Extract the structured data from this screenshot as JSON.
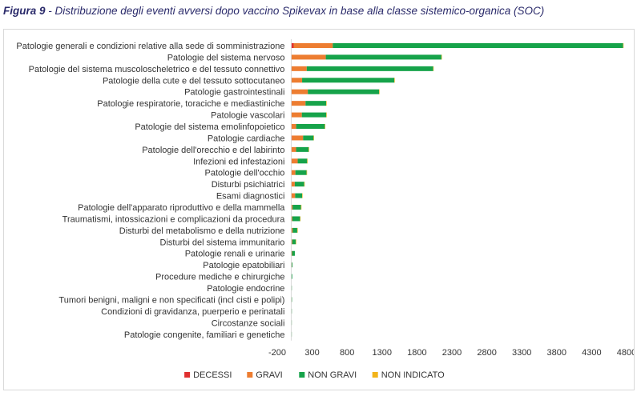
{
  "figure": {
    "label": "Figura 9",
    "separator": " - ",
    "title": "Distribuzione degli eventi avversi dopo vaccino Spikevax in base alla classe sistemico-organica (SOC)"
  },
  "chart_data": {
    "type": "bar",
    "orientation": "horizontal",
    "stacked": true,
    "categories": [
      "Patologie generali e condizioni relative alla sede di somministrazione",
      "Patologie del sistema nervoso",
      "Patologie del sistema muscoloscheletrico e del tessuto connettivo",
      "Patologie della cute e del tessuto sottocutaneo",
      "Patologie gastrointestinali",
      "Patologie respiratorie, toraciche e mediastiniche",
      "Patologie vascolari",
      "Patologie del sistema emolinfopoietico",
      "Patologie cardiache",
      "Patologie dell'orecchio e del labirinto",
      "Infezioni ed infestazioni",
      "Patologie dell'occhio",
      "Disturbi psichiatrici",
      "Esami diagnostici",
      "Patologie dell'apparato riproduttivo e della mammella",
      "Traumatismi, intossicazioni e complicazioni da procedura",
      "Disturbi del metabolismo e della nutrizione",
      "Disturbi del sistema immunitario",
      "Patologie renali e urinarie",
      "Patologie epatobiliari",
      "Procedure mediche e chirurgiche",
      "Patologie endocrine",
      "Tumori benigni, maligni e non specificati (incl cisti e polipi)",
      "Condizioni di gravidanza, puerperio e perinatali",
      "Circostanze sociali",
      "Patologie congenite, familiari e genetiche"
    ],
    "series": [
      {
        "name": "DECESSI",
        "color": "#e03030",
        "values": [
          35,
          5,
          2,
          1,
          3,
          5,
          2,
          1,
          10,
          0,
          3,
          0,
          1,
          1,
          0,
          1,
          1,
          0,
          0,
          1,
          0,
          0,
          1,
          0,
          0,
          0
        ]
      },
      {
        "name": "GRAVI",
        "color": "#ed7d31",
        "values": [
          560,
          490,
          220,
          155,
          235,
          200,
          150,
          70,
          160,
          70,
          90,
          60,
          50,
          55,
          20,
          15,
          20,
          15,
          12,
          8,
          3,
          2,
          3,
          2,
          1,
          1
        ]
      },
      {
        "name": "NON GRAVI",
        "color": "#16a34a",
        "values": [
          4155,
          1655,
          1810,
          1320,
          1020,
          295,
          350,
          410,
          150,
          180,
          135,
          160,
          135,
          100,
          120,
          110,
          65,
          50,
          40,
          10,
          12,
          4,
          3,
          3,
          2,
          2
        ]
      },
      {
        "name": "NON INDICATO",
        "color": "#f2b41a",
        "values": [
          5,
          2,
          2,
          2,
          2,
          1,
          1,
          1,
          1,
          1,
          1,
          1,
          1,
          1,
          1,
          1,
          1,
          1,
          0,
          0,
          0,
          0,
          0,
          0,
          0,
          0
        ]
      }
    ],
    "x_ticks": [
      -200,
      300,
      800,
      1300,
      1800,
      2300,
      2800,
      3300,
      3800,
      4300,
      4800
    ],
    "xlim": [
      -200,
      4800
    ],
    "grid": false,
    "legend_position": "bottom"
  }
}
